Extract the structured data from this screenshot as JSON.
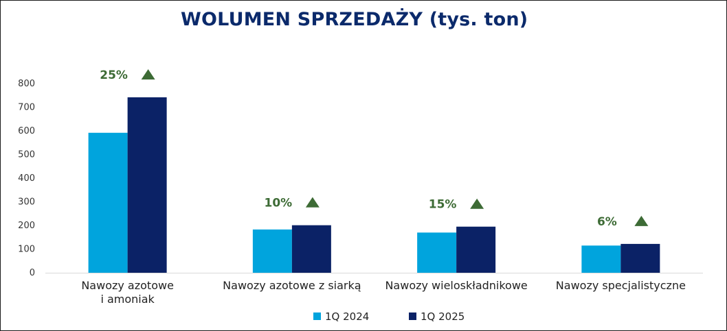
{
  "title": "WOLUMEN SPRZEDAŻY (tys. ton)",
  "colors": {
    "series_2024": "#00a4dd",
    "series_2025": "#0b2266",
    "change": "#3d6b35",
    "title": "#0b2a6b"
  },
  "chart_data": {
    "type": "bar",
    "title": "WOLUMEN SPRZEDAŻY (tys. ton)",
    "xlabel": "",
    "ylabel": "",
    "ylim": [
      0,
      800
    ],
    "yticks": [
      0,
      100,
      200,
      300,
      400,
      500,
      600,
      700,
      800
    ],
    "grid": false,
    "legend_position": "bottom",
    "categories": [
      [
        "Nawozy azotowe",
        "i amoniak"
      ],
      [
        "Nawozy azotowe z siarką"
      ],
      [
        "Nawozy wieloskładnikowe"
      ],
      [
        "Nawozy specjalistyczne"
      ]
    ],
    "series": [
      {
        "name": "1Q 2024",
        "color": "#00a4dd",
        "values": [
          592,
          183,
          170,
          115
        ]
      },
      {
        "name": "1Q 2025",
        "color": "#0b2266",
        "values": [
          742,
          201,
          195,
          122
        ]
      }
    ],
    "changes": [
      "25%",
      "10%",
      "15%",
      "6%"
    ],
    "change_direction": "up"
  }
}
